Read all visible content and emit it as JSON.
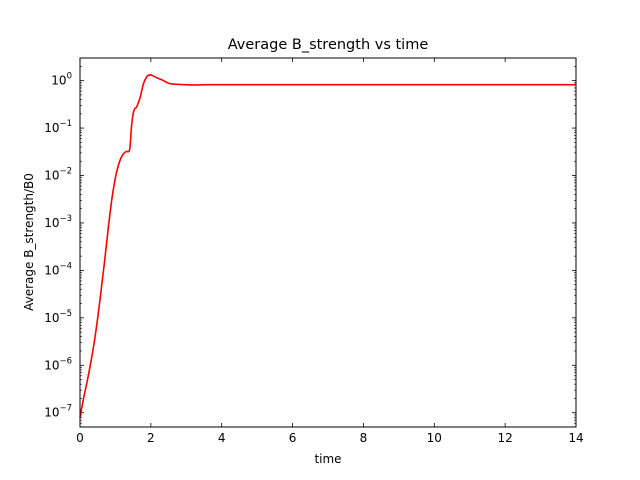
{
  "chart_data": {
    "type": "line",
    "title": "Average B_strength vs time",
    "xlabel": "time",
    "ylabel": "Average B_strength/B0",
    "xlim": [
      0,
      14
    ],
    "ylim": [
      5e-08,
      3
    ],
    "yscale": "log",
    "x_ticks": [
      0,
      2,
      4,
      6,
      8,
      10,
      12,
      14
    ],
    "x_tick_labels": [
      "0",
      "2",
      "4",
      "6",
      "8",
      "10",
      "12",
      "14"
    ],
    "y_ticks": [
      1e-07,
      1e-06,
      1e-05,
      0.0001,
      0.001,
      0.01,
      0.1,
      1
    ],
    "y_tick_labels": [
      {
        "base": "10",
        "exp": "−7"
      },
      {
        "base": "10",
        "exp": "−6"
      },
      {
        "base": "10",
        "exp": "−5"
      },
      {
        "base": "10",
        "exp": "−4"
      },
      {
        "base": "10",
        "exp": "−3"
      },
      {
        "base": "10",
        "exp": "−2"
      },
      {
        "base": "10",
        "exp": "−1"
      },
      {
        "base": "10",
        "exp": "0"
      }
    ],
    "grid": false,
    "series": [
      {
        "color": "#ff0000",
        "x": [
          0.0,
          0.1,
          0.2,
          0.3,
          0.4,
          0.5,
          0.6,
          0.7,
          0.8,
          0.9,
          1.0,
          1.1,
          1.2,
          1.3,
          1.4,
          1.45,
          1.5,
          1.55,
          1.6,
          1.7,
          1.75,
          1.8,
          1.9,
          2.0,
          2.1,
          2.2,
          2.3,
          2.4,
          2.5,
          2.6,
          2.8,
          3.0,
          3.3,
          3.6,
          4.0,
          5.0,
          6.0,
          8.0,
          10.0,
          12.0,
          14.0
        ],
        "y": [
          8e-08,
          2e-07,
          4.5e-07,
          1.1e-06,
          3e-06,
          1e-05,
          4e-05,
          0.00017,
          0.0008,
          0.0032,
          0.009,
          0.018,
          0.027,
          0.032,
          0.035,
          0.1,
          0.2,
          0.26,
          0.28,
          0.45,
          0.65,
          0.9,
          1.25,
          1.32,
          1.22,
          1.12,
          1.05,
          0.96,
          0.88,
          0.85,
          0.83,
          0.82,
          0.81,
          0.82,
          0.82,
          0.82,
          0.82,
          0.82,
          0.82,
          0.82,
          0.82
        ]
      }
    ]
  }
}
